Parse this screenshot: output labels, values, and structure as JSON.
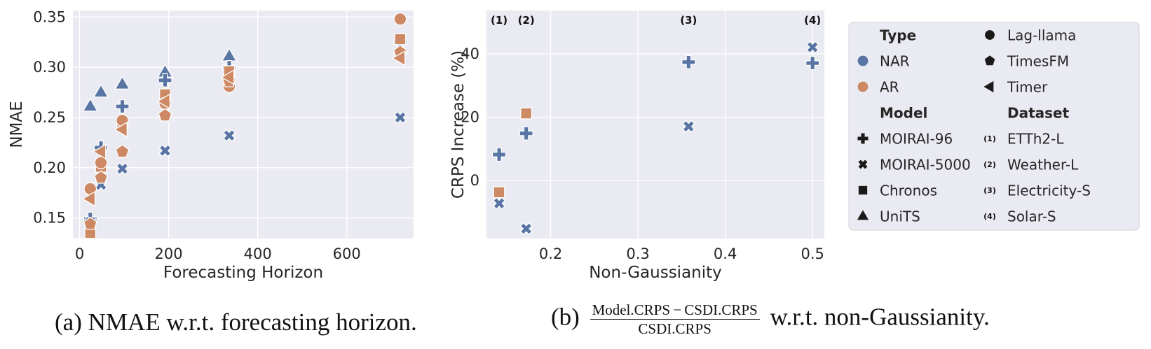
{
  "colors": {
    "NAR": "#5975a4",
    "AR": "#cc8963",
    "panel_bg": "#eaeaf2",
    "grid": "#ffffff",
    "text": "#262626"
  },
  "chart_data": [
    {
      "type": "scatter",
      "panel": "a",
      "xlabel": "Forecasting Horizon",
      "ylabel": "NMAE",
      "xlim": [
        -15,
        750
      ],
      "ylim": [
        0.1295,
        0.3565
      ],
      "xticks": [
        0,
        200,
        400,
        600
      ],
      "yticks": [
        0.15,
        0.2,
        0.25,
        0.3,
        0.35
      ],
      "xtick_labels": [
        "0",
        "200",
        "400",
        "600"
      ],
      "ytick_labels": [
        "0.15",
        "0.20",
        "0.25",
        "0.30",
        "0.35"
      ],
      "grid": true,
      "points": [
        {
          "x": 24,
          "y": 0.261,
          "model": "UniTS",
          "type": "NAR"
        },
        {
          "x": 48,
          "y": 0.275,
          "model": "UniTS",
          "type": "NAR"
        },
        {
          "x": 96,
          "y": 0.283,
          "model": "UniTS",
          "type": "NAR"
        },
        {
          "x": 192,
          "y": 0.295,
          "model": "UniTS",
          "type": "NAR"
        },
        {
          "x": 336,
          "y": 0.311,
          "model": "UniTS",
          "type": "NAR"
        },
        {
          "x": 720,
          "y": 0.318,
          "model": "UniTS",
          "type": "NAR"
        },
        {
          "x": 24,
          "y": 0.149,
          "model": "MOIRAI-96",
          "type": "NAR"
        },
        {
          "x": 48,
          "y": 0.22,
          "model": "MOIRAI-96",
          "type": "NAR"
        },
        {
          "x": 96,
          "y": 0.261,
          "model": "MOIRAI-96",
          "type": "NAR"
        },
        {
          "x": 192,
          "y": 0.287,
          "model": "MOIRAI-96",
          "type": "NAR"
        },
        {
          "x": 336,
          "y": 0.3,
          "model": "MOIRAI-96",
          "type": "NAR"
        },
        {
          "x": 720,
          "y": 0.325,
          "model": "MOIRAI-96",
          "type": "NAR"
        },
        {
          "x": 24,
          "y": 0.146,
          "model": "MOIRAI-5000",
          "type": "NAR"
        },
        {
          "x": 48,
          "y": 0.183,
          "model": "MOIRAI-5000",
          "type": "NAR"
        },
        {
          "x": 96,
          "y": 0.199,
          "model": "MOIRAI-5000",
          "type": "NAR"
        },
        {
          "x": 192,
          "y": 0.217,
          "model": "MOIRAI-5000",
          "type": "NAR"
        },
        {
          "x": 336,
          "y": 0.232,
          "model": "MOIRAI-5000",
          "type": "NAR"
        },
        {
          "x": 720,
          "y": 0.25,
          "model": "MOIRAI-5000",
          "type": "NAR"
        },
        {
          "x": 24,
          "y": 0.135,
          "model": "Chronos",
          "type": "AR"
        },
        {
          "x": 48,
          "y": 0.201,
          "model": "Chronos",
          "type": "AR"
        },
        {
          "x": 96,
          "y": 0.244,
          "model": "Chronos",
          "type": "AR"
        },
        {
          "x": 192,
          "y": 0.273,
          "model": "Chronos",
          "type": "AR"
        },
        {
          "x": 336,
          "y": 0.296,
          "model": "Chronos",
          "type": "AR"
        },
        {
          "x": 720,
          "y": 0.328,
          "model": "Chronos",
          "type": "AR"
        },
        {
          "x": 24,
          "y": 0.179,
          "model": "Lag-llama",
          "type": "AR"
        },
        {
          "x": 48,
          "y": 0.205,
          "model": "Lag-llama",
          "type": "AR"
        },
        {
          "x": 96,
          "y": 0.247,
          "model": "Lag-llama",
          "type": "AR"
        },
        {
          "x": 192,
          "y": 0.264,
          "model": "Lag-llama",
          "type": "AR"
        },
        {
          "x": 336,
          "y": 0.281,
          "model": "Lag-llama",
          "type": "AR"
        },
        {
          "x": 720,
          "y": 0.348,
          "model": "Lag-llama",
          "type": "AR"
        },
        {
          "x": 24,
          "y": 0.144,
          "model": "TimesFM",
          "type": "AR"
        },
        {
          "x": 48,
          "y": 0.19,
          "model": "TimesFM",
          "type": "AR"
        },
        {
          "x": 96,
          "y": 0.216,
          "model": "TimesFM",
          "type": "AR"
        },
        {
          "x": 192,
          "y": 0.252,
          "model": "TimesFM",
          "type": "AR"
        },
        {
          "x": 336,
          "y": 0.286,
          "model": "TimesFM",
          "type": "AR"
        },
        {
          "x": 720,
          "y": 0.315,
          "model": "TimesFM",
          "type": "AR"
        },
        {
          "x": 24,
          "y": 0.169,
          "model": "Timer",
          "type": "AR"
        },
        {
          "x": 48,
          "y": 0.216,
          "model": "Timer",
          "type": "AR"
        },
        {
          "x": 96,
          "y": 0.238,
          "model": "Timer",
          "type": "AR"
        },
        {
          "x": 192,
          "y": 0.266,
          "model": "Timer",
          "type": "AR"
        },
        {
          "x": 336,
          "y": 0.29,
          "model": "Timer",
          "type": "AR"
        },
        {
          "x": 720,
          "y": 0.309,
          "model": "Timer",
          "type": "AR"
        }
      ]
    },
    {
      "type": "scatter",
      "panel": "b",
      "xlabel": "Non-Gaussianity",
      "ylabel": "CRPS Increase (%)",
      "xlim": [
        0.1265,
        0.5135
      ],
      "ylim": [
        -18.3,
        53.7
      ],
      "xticks": [
        0.2,
        0.3,
        0.4,
        0.5
      ],
      "yticks": [
        0,
        20,
        40
      ],
      "xtick_labels": [
        "0.2",
        "0.3",
        "0.4",
        "0.5"
      ],
      "ytick_labels": [
        "0",
        "20",
        "40"
      ],
      "grid": true,
      "dataset_annotations": [
        {
          "x": 0.141,
          "text": "(1)"
        },
        {
          "x": 0.172,
          "text": "(2)"
        },
        {
          "x": 0.358,
          "text": "(3)"
        },
        {
          "x": 0.5,
          "text": "(4)"
        }
      ],
      "points": [
        {
          "x": 0.141,
          "y": 8.2,
          "model": "MOIRAI-96",
          "type": "NAR"
        },
        {
          "x": 0.141,
          "y": -7.2,
          "model": "MOIRAI-5000",
          "type": "NAR"
        },
        {
          "x": 0.141,
          "y": -3.7,
          "model": "Chronos",
          "type": "AR"
        },
        {
          "x": 0.172,
          "y": 14.9,
          "model": "MOIRAI-96",
          "type": "NAR"
        },
        {
          "x": 0.172,
          "y": -15.2,
          "model": "MOIRAI-5000",
          "type": "NAR"
        },
        {
          "x": 0.172,
          "y": 21.2,
          "model": "Chronos",
          "type": "AR"
        },
        {
          "x": 0.358,
          "y": 37.4,
          "model": "MOIRAI-96",
          "type": "NAR"
        },
        {
          "x": 0.358,
          "y": 17.1,
          "model": "MOIRAI-5000",
          "type": "NAR"
        },
        {
          "x": 0.5,
          "y": 37.1,
          "model": "MOIRAI-96",
          "type": "NAR"
        },
        {
          "x": 0.5,
          "y": 42.1,
          "model": "MOIRAI-5000",
          "type": "NAR"
        }
      ]
    }
  ],
  "legend": {
    "placement": "right",
    "left_column": [
      {
        "kind": "header",
        "text": "Type"
      },
      {
        "kind": "type",
        "text": "NAR",
        "key": "NAR"
      },
      {
        "kind": "type",
        "text": "AR",
        "key": "AR"
      },
      {
        "kind": "header",
        "text": "Model"
      },
      {
        "kind": "model",
        "text": "MOIRAI-96",
        "marker": "plus"
      },
      {
        "kind": "model",
        "text": "MOIRAI-5000",
        "marker": "cross"
      },
      {
        "kind": "model",
        "text": "Chronos",
        "marker": "square"
      },
      {
        "kind": "model",
        "text": "UniTS",
        "marker": "triangle-up"
      }
    ],
    "right_column": [
      {
        "kind": "model",
        "text": "Lag-llama",
        "marker": "circle"
      },
      {
        "kind": "model",
        "text": "TimesFM",
        "marker": "pentagon"
      },
      {
        "kind": "model",
        "text": "Timer",
        "marker": "triangle-left"
      },
      {
        "kind": "header",
        "text": "Dataset"
      },
      {
        "kind": "dataset",
        "text": "ETTh2-L",
        "tag": "(1)"
      },
      {
        "kind": "dataset",
        "text": "Weather-L",
        "tag": "(2)"
      },
      {
        "kind": "dataset",
        "text": "Electricity-S",
        "tag": "(3)"
      },
      {
        "kind": "dataset",
        "text": "Solar-S",
        "tag": "(4)"
      }
    ]
  },
  "captions": {
    "a": "(a) NMAE w.r.t. forecasting horizon.",
    "b_prefix": "(b)",
    "b_numerator": "Model.CRPS − CSDI.CRPS",
    "b_denominator": "CSDI.CRPS",
    "b_suffix": "w.r.t. non-Gaussianity."
  }
}
